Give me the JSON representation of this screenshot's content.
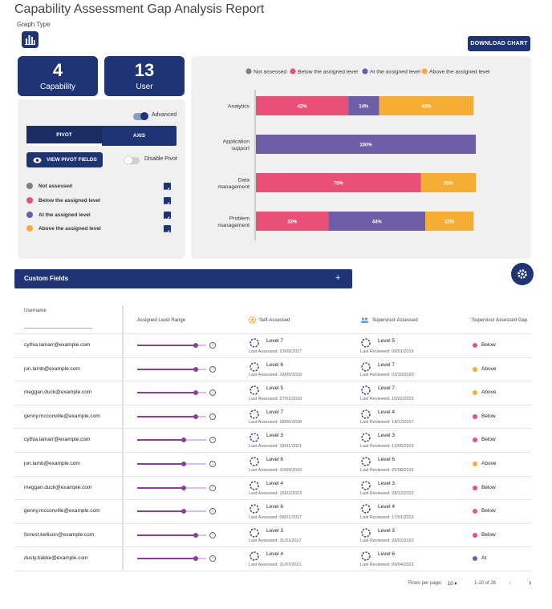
{
  "page": {
    "title": "Capability Assessment Gap Analysis Report",
    "graph_type_label": "Graph Type",
    "download_label": "DOWNLOAD CHART"
  },
  "stats": [
    {
      "value": "4",
      "label": "Capability"
    },
    {
      "value": "13",
      "label": "User"
    }
  ],
  "controls": {
    "advanced_label": "Advanced",
    "advanced_on": true,
    "tabs": [
      {
        "label": "PIVOT",
        "active": true
      },
      {
        "label": "AXIS",
        "active": false
      }
    ],
    "view_pivot_label": "VIEW PIVOT FIELDS",
    "disable_pivot_label": "Disable Pivot",
    "disable_pivot_on": false
  },
  "legend": [
    {
      "label": "Not assessed",
      "color": "#808080",
      "checked": true
    },
    {
      "label": "Below the assigned level",
      "color": "#e8507a",
      "checked": true
    },
    {
      "label": "At the assigned level",
      "color": "#6e5ea8",
      "checked": true
    },
    {
      "label": "Above the assigned level",
      "color": "#f5ae33",
      "checked": true
    }
  ],
  "chart_data": {
    "type": "bar",
    "orientation": "horizontal-stacked",
    "categories": [
      "Analytics",
      "Application support",
      "Data management",
      "Problem management"
    ],
    "category_lines": [
      [
        "Analytics"
      ],
      [
        "Application",
        "support"
      ],
      [
        "Data",
        "management"
      ],
      [
        "Problem",
        "management"
      ]
    ],
    "series": [
      {
        "name": "Not assessed",
        "color": "#808080",
        "values": [
          0,
          0,
          0,
          0
        ]
      },
      {
        "name": "Below the assigned level",
        "color": "#e8507a",
        "values": [
          42,
          0,
          75,
          33
        ]
      },
      {
        "name": "At the assigned level",
        "color": "#6e5ea8",
        "values": [
          14,
          100,
          0,
          44
        ]
      },
      {
        "name": "Above the assigned level",
        "color": "#f5ae33",
        "values": [
          43,
          0,
          25,
          22
        ]
      }
    ],
    "value_labels": [
      [
        "42%",
        "14%",
        "43%"
      ],
      [
        "100%"
      ],
      [
        "75%",
        "25%"
      ],
      [
        "33%",
        "44%",
        "22%"
      ]
    ],
    "xlim": [
      0,
      100
    ],
    "legend_position": "top",
    "grid": false
  },
  "custom_fields": {
    "label": "Custom Fields",
    "expand_icon": "plus-icon"
  },
  "table": {
    "headers": {
      "username": "Username",
      "range": "Assigned Level Range",
      "self": "Self-Assessed",
      "supervisor": "Supervisor-Assessed",
      "gap": "Supervisor Assessed Gap"
    },
    "rows": [
      {
        "user": "cythia.lamarr@example.com",
        "range": 0.85,
        "self_level": "Level 7",
        "self_date": "Last Assessed: 23/09/2017",
        "sup_level": "Level 5",
        "sup_date": "Last Reviewed: 09/01/2016",
        "gap": "Below",
        "gap_color": "#e8507a"
      },
      {
        "user": "jon.lamb@example.com",
        "range": 0.85,
        "self_level": "Level 6",
        "self_date": "Last Assessed: 16/05/2019",
        "sup_level": "Level 7",
        "sup_date": "Last Reviewed: 03/10/2020",
        "gap": "Above",
        "gap_color": "#f5ae33"
      },
      {
        "user": "meggan.duck@example.com",
        "range": 0.85,
        "self_level": "Level 5",
        "self_date": "Last Assessed: 27/01/2019",
        "sup_level": "Level 7",
        "sup_date": "Last Reviewed: 10/02/2023",
        "gap": "Above",
        "gap_color": "#f5ae33"
      },
      {
        "user": "genny.mcconville@example.com",
        "range": 0.85,
        "self_level": "Level 7",
        "self_date": "Last Assessed: 28/06/2018",
        "sup_level": "Level 4",
        "sup_date": "Last Reviewed: 14/12/2017",
        "gap": "Below",
        "gap_color": "#e8507a"
      },
      {
        "user": "cythia.lamarr@example.com",
        "range": 0.68,
        "self_level": "Level 3",
        "self_date": "Last Assessed: 18/01/2021",
        "sup_level": "Level 3",
        "sup_date": "Last Reviewed: 13/05/2019",
        "gap": "Below",
        "gap_color": "#e8507a"
      },
      {
        "user": "jon.lamb@example.com",
        "range": 0.68,
        "self_level": "Level 6",
        "self_date": "Last Assessed: 10/09/2019",
        "sup_level": "Level 6",
        "sup_date": "Last Reviewed: 25/08/2016",
        "gap": "Above",
        "gap_color": "#f5ae33"
      },
      {
        "user": "meggan.duck@example.com",
        "range": 0.68,
        "self_level": "Level 4",
        "self_date": "Last Assessed: 15/02/2023",
        "sup_level": "Level 3",
        "sup_date": "Last Reviewed: 28/12/2022",
        "gap": "Below",
        "gap_color": "#e8507a"
      },
      {
        "user": "genny.mcconville@example.com",
        "range": 0.68,
        "self_level": "Level 6",
        "self_date": "Last Assessed: 08/01/2017",
        "sup_level": "Level 4",
        "sup_date": "Last Reviewed: 17/01/2023",
        "gap": "Below",
        "gap_color": "#e8507a"
      },
      {
        "user": "forrest.kellison@example.com",
        "range": 0.85,
        "self_level": "Level 3",
        "self_date": "Last Assessed: 11/01/2017",
        "sup_level": "Level 3",
        "sup_date": "Last Reviewed: 28/02/2022",
        "gap": "Below",
        "gap_color": "#e8507a"
      },
      {
        "user": "dusty.bakke@example.com",
        "range": 0.85,
        "self_level": "Level 4",
        "self_date": "Last Assessed: 11/07/2021",
        "sup_level": "Level 6",
        "sup_date": "Last Reviewed: 09/04/2022",
        "gap": "At",
        "gap_color": "#6e5ea8"
      }
    ]
  },
  "pagination": {
    "rows_per_page_label": "Rows per page:",
    "rows_per_page": "10",
    "range": "1-10 of 26"
  }
}
